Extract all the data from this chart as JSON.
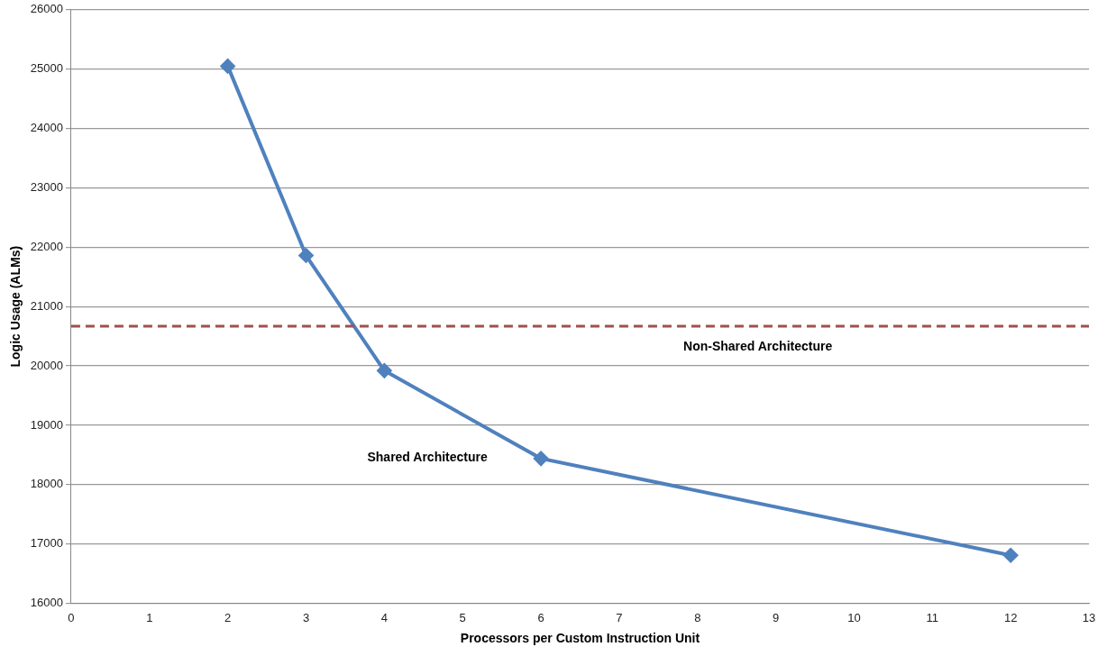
{
  "chart_data": {
    "type": "line",
    "xlabel": "Processors per Custom Instruction Unit",
    "ylabel": "Logic Usage (ALMs)",
    "x": [
      2,
      3,
      4,
      6,
      12
    ],
    "series": [
      {
        "color": "#4f81bd",
        "values": [
          25050,
          21860,
          19920,
          18440,
          16810
        ]
      }
    ],
    "xlim": [
      0,
      13
    ],
    "xticks": [
      0,
      1,
      2,
      3,
      4,
      5,
      6,
      7,
      8,
      9,
      10,
      11,
      12,
      13
    ],
    "ylim": [
      16000,
      26000
    ],
    "yticks": [
      16000,
      17000,
      18000,
      19000,
      20000,
      21000,
      22000,
      23000,
      24000,
      25000,
      26000
    ],
    "ref_lines": [
      {
        "axis": "y",
        "value": 20670,
        "label": "Non-Shared Architecture",
        "color": "#a0504d",
        "line_style": "dashed"
      }
    ],
    "annotations": [
      "Shared Architecture"
    ],
    "grid": "y",
    "legend": false,
    "marker": "diamond",
    "line_style": "solid"
  }
}
